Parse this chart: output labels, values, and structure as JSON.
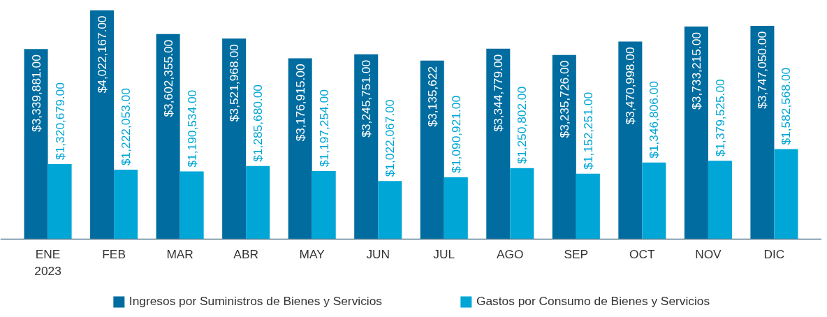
{
  "chart_data": {
    "type": "bar",
    "categories": [
      "ENE\n2023",
      "FEB",
      "MAR",
      "ABR",
      "MAY",
      "JUN",
      "JUL",
      "AGO",
      "SEP",
      "OCT",
      "NOV",
      "DIC"
    ],
    "series": [
      {
        "name": "Ingresos por Suministros de Bienes y Servicios",
        "color": "#006c9f",
        "values": [
          3339881,
          4022167,
          3602355,
          3521968,
          3176915,
          3245751,
          3135622,
          3344779,
          3235726,
          3470998,
          3733215,
          3747050
        ],
        "value_labels": [
          "$3,339,881.00",
          "$4,022,167.00",
          "$3,602,355.00",
          "$3,521,968.00",
          "$3,176,915.00",
          "$3,245,751.00",
          "$3,135,622",
          "$3,344,779.00",
          "$3,235,726.00",
          "$3,470,998.00",
          "$3,733,215.00",
          "$3,747,050.00"
        ]
      },
      {
        "name": "Gastos por Consumo de Bienes y Servicios",
        "color": "#00a6d6",
        "values": [
          1320679,
          1222053,
          1190534,
          1285680,
          1197254,
          1022067,
          1090921,
          1250802,
          1152251,
          1346806,
          1379525,
          1582568
        ],
        "value_labels": [
          "$1,320,679.00",
          "$1,222,053.00",
          "$1,190,534.00",
          "$1,285,680.00",
          "$1,197,254.00",
          "$1,022,067.00",
          "$1,090,921.00",
          "$1,250,802.00",
          "$1,152,251.00",
          "$1,346,806.00",
          "$1,379,525.00",
          "$1,582,568.00"
        ]
      }
    ],
    "legend": "bottom"
  }
}
